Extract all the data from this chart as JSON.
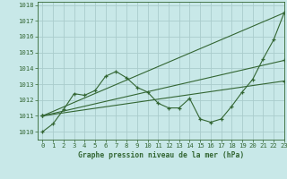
{
  "title": "Graphe pression niveau de la mer (hPa)",
  "bg_color": "#c8e8e8",
  "grid_color": "#aacccc",
  "line_color": "#336633",
  "marker_color": "#336633",
  "xlim": [
    -0.5,
    23
  ],
  "ylim": [
    1009.5,
    1018.2
  ],
  "yticks": [
    1010,
    1011,
    1012,
    1013,
    1014,
    1015,
    1016,
    1017,
    1018
  ],
  "xticks": [
    0,
    1,
    2,
    3,
    4,
    5,
    6,
    7,
    8,
    9,
    10,
    11,
    12,
    13,
    14,
    15,
    16,
    17,
    18,
    19,
    20,
    21,
    22,
    23
  ],
  "series1": [
    1010.0,
    1010.5,
    1011.4,
    1012.4,
    1012.3,
    1012.6,
    1013.5,
    1013.8,
    1013.4,
    1012.8,
    1012.5,
    1011.8,
    1011.5,
    1011.5,
    1012.1,
    1010.8,
    1010.6,
    1010.8,
    1011.6,
    1012.5,
    1013.3,
    1014.6,
    1015.8,
    1017.5
  ],
  "trend1_x": [
    0,
    23
  ],
  "trend1_y": [
    1011.0,
    1017.5
  ],
  "trend2_x": [
    0,
    23
  ],
  "trend2_y": [
    1011.0,
    1014.5
  ],
  "trend3_x": [
    0,
    23
  ],
  "trend3_y": [
    1011.0,
    1013.2
  ]
}
